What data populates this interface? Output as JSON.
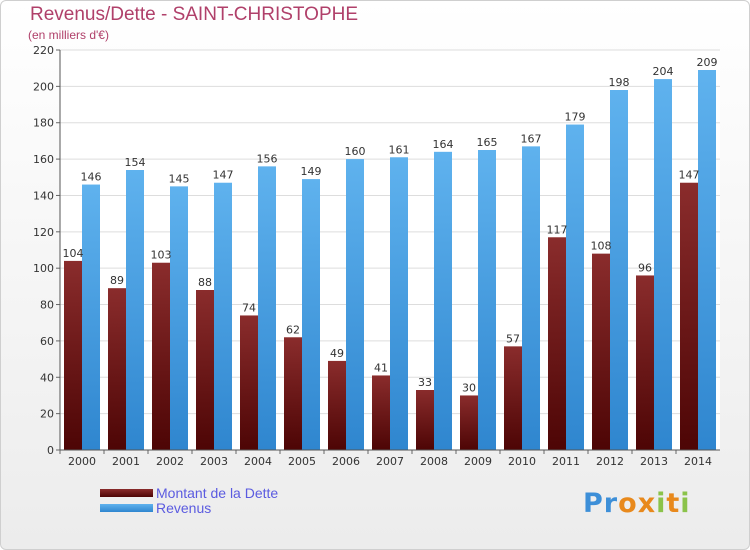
{
  "chart_data": {
    "type": "bar",
    "title": "Revenus/Dette - SAINT-CHRISTOPHE",
    "subtitle": "(en milliers d'€)",
    "categories": [
      "2000",
      "2001",
      "2002",
      "2003",
      "2004",
      "2005",
      "2006",
      "2007",
      "2008",
      "2009",
      "2010",
      "2011",
      "2012",
      "2013",
      "2014"
    ],
    "series": [
      {
        "name": "Montant de la Dette",
        "values": [
          104,
          89,
          103,
          88,
          74,
          62,
          49,
          41,
          33,
          30,
          57,
          117,
          108,
          96,
          147
        ],
        "color": "#7a1c1c"
      },
      {
        "name": "Revenus",
        "values": [
          146,
          154,
          145,
          147,
          156,
          149,
          160,
          161,
          164,
          165,
          167,
          179,
          198,
          204,
          209
        ],
        "color": "#4aa3e6"
      }
    ],
    "ylim": [
      0,
      220
    ],
    "yticks": [
      0,
      20,
      40,
      60,
      80,
      100,
      120,
      140,
      160,
      180,
      200,
      220
    ],
    "grid": true,
    "legend": "bottom-left"
  },
  "logo": {
    "text": "Proxiti",
    "letters": [
      "P",
      "r",
      "o",
      "x",
      "i",
      "t",
      "i"
    ]
  }
}
